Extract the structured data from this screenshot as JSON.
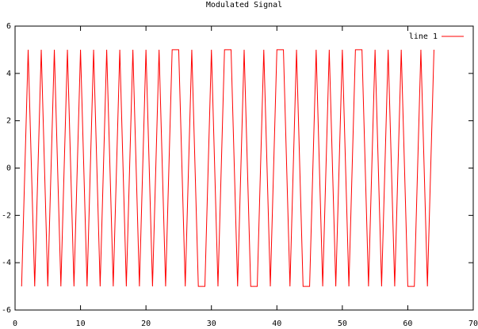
{
  "chart_data": {
    "type": "line",
    "title": "Modulated Signal",
    "x": [
      1,
      2,
      3,
      4,
      5,
      6,
      7,
      8,
      9,
      10,
      11,
      12,
      13,
      14,
      15,
      16,
      17,
      18,
      19,
      20,
      21,
      22,
      23,
      24,
      25,
      26,
      27,
      28,
      29,
      30,
      31,
      32,
      33,
      34,
      35,
      36,
      37,
      38,
      39,
      40,
      41,
      42,
      43,
      44,
      45,
      46,
      47,
      48,
      49,
      50,
      51,
      52,
      53,
      54,
      55,
      56,
      57,
      58,
      59,
      60,
      61,
      62,
      63,
      64
    ],
    "series": [
      {
        "name": "line 1",
        "color": "#ff0000",
        "values": [
          -5,
          5,
          -5,
          5,
          -5,
          5,
          -5,
          5,
          -5,
          5,
          -5,
          5,
          -5,
          5,
          -5,
          5,
          -5,
          5,
          -5,
          5,
          -5,
          5,
          -5,
          5,
          5,
          -5,
          5,
          -5,
          -5,
          5,
          -5,
          5,
          5,
          -5,
          5,
          -5,
          -5,
          5,
          -5,
          5,
          5,
          -5,
          5,
          -5,
          -5,
          5,
          -5,
          5,
          -5,
          5,
          -5,
          5,
          5,
          -5,
          5,
          -5,
          5,
          -5,
          5,
          -5,
          -5,
          5,
          -5,
          5
        ]
      }
    ],
    "xlim": [
      0,
      70
    ],
    "xticks": [
      0,
      10,
      20,
      30,
      40,
      50,
      60,
      70
    ],
    "ylim": [
      -6,
      6
    ],
    "yticks": [
      -6,
      -4,
      -2,
      0,
      2,
      4,
      6
    ],
    "legend": "top-right"
  }
}
